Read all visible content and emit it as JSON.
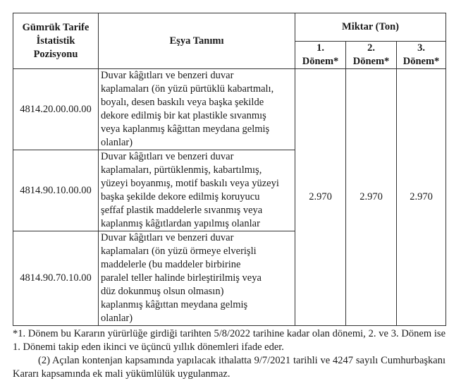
{
  "table": {
    "headers": {
      "position": [
        "Gümrük Tarife",
        "İstatistik",
        "Pozisyonu"
      ],
      "description": "Eşya Tanımı",
      "quantity": "Miktar (Ton)",
      "periods": [
        [
          "1.",
          "Dönem*"
        ],
        [
          "2.",
          "Dönem*"
        ],
        [
          "3.",
          "Dönem*"
        ]
      ]
    },
    "rows": [
      {
        "code": "4814.20.00.00.00",
        "lines": [
          "Duvar kâğıtları ve benzeri duvar",
          "kaplamaları (ön yüzü pürtüklü kabartmalı,",
          "boyalı, desen baskılı veya başka şekilde",
          "dekore edilmiş bir kat plastikle  sıvanmış",
          "veya kaplanmış kâğıttan meydana gelmiş",
          "olanlar)"
        ]
      },
      {
        "code": "4814.90.10.00.00",
        "lines": [
          "Duvar kâğıtları ve benzeri duvar",
          "kaplamaları, pürtüklenmiş, kabartılmış,",
          "yüzeyi boyanmış, motif baskılı veya yüzeyi",
          "başka şekilde dekore edilmiş koruyucu",
          "şeffaf plastik maddelerle sıvanmış veya",
          "kaplanmış kâğıtlardan yapılmış olanlar"
        ]
      },
      {
        "code": "4814.90.70.10.00",
        "lines": [
          "Duvar  kâğıtları  ve  benzeri duvar",
          "kaplamaları (ön yüzü örmeye elverişli",
          "maddelerle (bu   maddeler  birbirine",
          "paralel   teller   halinde birleştirilmiş veya",
          "düz    dokunmuş   olsun olmasın)",
          "kaplanmış  kâğıttan  meydana gelmiş",
          "olanlar)"
        ]
      }
    ],
    "quantities": [
      "2.970",
      "2.970",
      "2.970"
    ]
  },
  "footnote": "*1. Dönem bu Kararın yürürlüğe girdiği tarihten 5/8/2022 tarihine kadar olan dönemi, 2. ve 3. Dönem ise 1. Dönemi takip eden ikinci ve üçüncü yıllık dönemleri ifade eder.",
  "paragraph": "(2) Açılan kontenjan kapsamında yapılacak ithalatta 9/7/2021 tarihli ve 4247 sayılı Cumhurbaşkanı Kararı kapsamında ek mali yükümlülük uygulanmaz."
}
